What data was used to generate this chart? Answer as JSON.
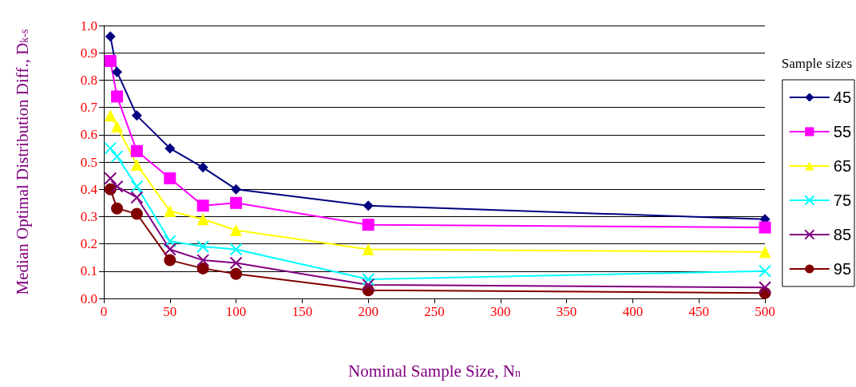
{
  "chart_data": {
    "type": "line",
    "xlabel": "Nominal Sample Size, N$_{n}$",
    "ylabel": "Median Optimal Distribution Diff., D$_{k-s}$",
    "legend_title": "Sample sizes",
    "x": [
      5,
      10,
      25,
      50,
      75,
      100,
      200,
      500
    ],
    "series": [
      {
        "name": "45",
        "color": "#000080",
        "marker": "diamond",
        "values": [
          0.96,
          0.83,
          0.67,
          0.55,
          0.48,
          0.4,
          0.34,
          0.29
        ]
      },
      {
        "name": "55",
        "color": "#ff00ff",
        "marker": "square",
        "values": [
          0.87,
          0.74,
          0.54,
          0.44,
          0.34,
          0.35,
          0.27,
          0.26
        ]
      },
      {
        "name": "65",
        "color": "#ffff00",
        "marker": "triangle",
        "values": [
          0.67,
          0.63,
          0.49,
          0.32,
          0.29,
          0.25,
          0.18,
          0.17
        ]
      },
      {
        "name": "75",
        "color": "#00ffff",
        "marker": "cross",
        "values": [
          0.55,
          0.52,
          0.41,
          0.21,
          0.19,
          0.18,
          0.07,
          0.1
        ]
      },
      {
        "name": "85",
        "color": "#800080",
        "marker": "cross",
        "values": [
          0.44,
          0.41,
          0.37,
          0.18,
          0.14,
          0.13,
          0.05,
          0.04
        ]
      },
      {
        "name": "95",
        "color": "#800000",
        "marker": "circle",
        "values": [
          0.4,
          0.33,
          0.31,
          0.14,
          0.11,
          0.09,
          0.03,
          0.02
        ]
      }
    ],
    "xlim": [
      0,
      500
    ],
    "xticks": [
      0,
      50,
      100,
      150,
      200,
      250,
      300,
      350,
      400,
      450,
      500
    ],
    "ylim": [
      0,
      1
    ],
    "yticks": [
      {
        "value": 0,
        "label": "0.0"
      },
      0.1,
      0.2,
      0.3,
      0.4,
      0.5,
      0.6,
      0.7,
      0.8,
      0.9,
      {
        "value": 1,
        "label": "1.0"
      }
    ],
    "grid": "y",
    "legend": "right",
    "line_style": "solid"
  }
}
